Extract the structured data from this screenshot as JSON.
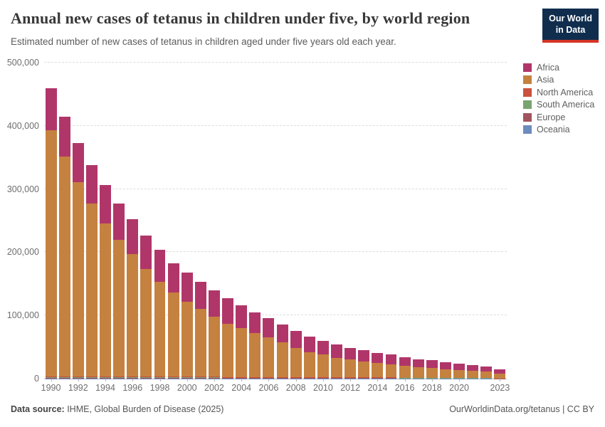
{
  "header": {
    "title": "Annual new cases of tetanus in children under five, by world region",
    "subtitle": "Estimated number of new cases of tetanus in children aged under five years old each year.",
    "logo_line1": "Our World",
    "logo_line2": "in Data",
    "logo_bg_color": "#102d4e",
    "logo_accent_color": "#d63426"
  },
  "legend": {
    "items": [
      {
        "label": "Africa",
        "color": "#b0366a"
      },
      {
        "label": "Asia",
        "color": "#c5813f"
      },
      {
        "label": "North America",
        "color": "#c9513e"
      },
      {
        "label": "South America",
        "color": "#79a471"
      },
      {
        "label": "Europe",
        "color": "#a2545e"
      },
      {
        "label": "Oceania",
        "color": "#6c8bbf"
      }
    ]
  },
  "chart_data": {
    "type": "bar",
    "stacked": true,
    "title": "Annual new cases of tetanus in children under five, by world region",
    "xlabel": "",
    "ylabel": "",
    "ylim": [
      0,
      500000
    ],
    "grid": "dashed-horizontal",
    "legend_position": "right",
    "yticks": [
      {
        "value": 0,
        "label": "0"
      },
      {
        "value": 100000,
        "label": "100,000"
      },
      {
        "value": 200000,
        "label": "200,000"
      },
      {
        "value": 300000,
        "label": "300,000"
      },
      {
        "value": 400000,
        "label": "400,000"
      },
      {
        "value": 500000,
        "label": "500,000"
      }
    ],
    "xtick_years": [
      1990,
      1992,
      1994,
      1996,
      1998,
      2000,
      2002,
      2004,
      2006,
      2008,
      2010,
      2012,
      2014,
      2016,
      2018,
      2020,
      2023
    ],
    "categories": [
      1990,
      1991,
      1992,
      1993,
      1994,
      1995,
      1996,
      1997,
      1998,
      1999,
      2000,
      2001,
      2002,
      2003,
      2004,
      2005,
      2006,
      2007,
      2008,
      2009,
      2010,
      2011,
      2012,
      2013,
      2014,
      2015,
      2016,
      2017,
      2018,
      2019,
      2020,
      2021,
      2022,
      2023
    ],
    "series": [
      {
        "name": "Oceania",
        "color": "#6c8bbf",
        "values": [
          300,
          300,
          300,
          300,
          300,
          300,
          300,
          300,
          300,
          300,
          300,
          300,
          300,
          200,
          200,
          200,
          200,
          200,
          200,
          200,
          200,
          200,
          200,
          200,
          200,
          200,
          150,
          150,
          150,
          150,
          150,
          150,
          100,
          50
        ]
      },
      {
        "name": "Europe",
        "color": "#a2545e",
        "values": [
          600,
          600,
          600,
          600,
          600,
          600,
          600,
          600,
          600,
          600,
          600,
          600,
          600,
          400,
          400,
          400,
          400,
          400,
          400,
          400,
          400,
          400,
          400,
          400,
          400,
          400,
          300,
          300,
          300,
          300,
          300,
          300,
          200,
          100
        ]
      },
      {
        "name": "South America",
        "color": "#79a471",
        "values": [
          900,
          900,
          900,
          900,
          900,
          900,
          900,
          900,
          900,
          900,
          900,
          900,
          900,
          600,
          600,
          600,
          600,
          600,
          600,
          600,
          600,
          600,
          600,
          600,
          600,
          600,
          450,
          450,
          450,
          450,
          450,
          450,
          300,
          150
        ]
      },
      {
        "name": "North America",
        "color": "#c9513e",
        "values": [
          1200,
          1200,
          1200,
          1200,
          1200,
          1200,
          1200,
          1200,
          1200,
          1200,
          1200,
          1200,
          1200,
          800,
          800,
          800,
          800,
          800,
          800,
          800,
          800,
          800,
          800,
          800,
          800,
          800,
          600,
          600,
          600,
          600,
          600,
          600,
          400,
          200
        ]
      },
      {
        "name": "Asia",
        "color": "#c5813f",
        "values": [
          390000,
          348000,
          308000,
          274000,
          243000,
          217000,
          194000,
          170000,
          150000,
          133000,
          119000,
          107000,
          95000,
          85000,
          78000,
          70000,
          63000,
          55000,
          47000,
          40000,
          36000,
          31000,
          28000,
          25000,
          23000,
          21000,
          18500,
          16500,
          15500,
          13500,
          12500,
          11000,
          10000,
          8000
        ]
      },
      {
        "name": "Africa",
        "color": "#b0366a",
        "values": [
          67000,
          63000,
          62000,
          61000,
          60000,
          57000,
          55000,
          53000,
          51000,
          47000,
          46000,
          43000,
          42000,
          40000,
          36000,
          33000,
          31000,
          29000,
          26000,
          24000,
          22000,
          21000,
          19000,
          18000,
          16000,
          15000,
          14000,
          13000,
          12000,
          11000,
          10000,
          9500,
          8000,
          6500
        ]
      }
    ]
  },
  "footer": {
    "source_label": "Data source:",
    "source_text": " IHME, Global Burden of Disease (2025)",
    "right_text": "OurWorldinData.org/tetanus | CC BY"
  }
}
